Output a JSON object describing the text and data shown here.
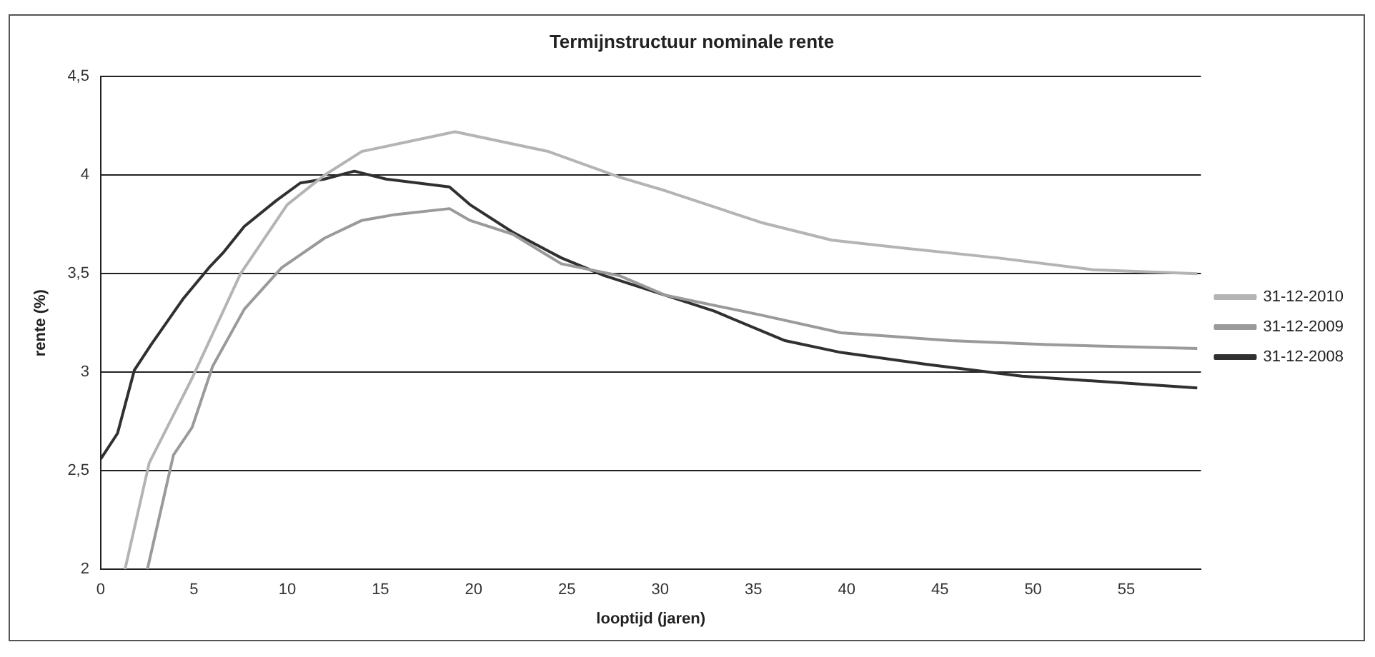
{
  "chart_data": {
    "type": "line",
    "title": "Termijnstructuur nominale rente",
    "xlabel": "looptijd (jaren)",
    "ylabel": "rente (%)",
    "xlim": [
      0,
      59
    ],
    "xticks": [
      0,
      5,
      10,
      15,
      20,
      25,
      30,
      35,
      40,
      45,
      50,
      55
    ],
    "ylim": [
      2,
      4.5
    ],
    "yticks": [
      2,
      {
        "value": 2.5,
        "label": "2,5"
      },
      3,
      {
        "value": 3.5,
        "label": "3,5"
      },
      4,
      {
        "value": 4.5,
        "label": "4,5"
      }
    ],
    "grid": "y",
    "legend": "right",
    "marker": "none",
    "line_style": "solid",
    "series": [
      {
        "name": "31-12-2010",
        "color": "#b4b4b4",
        "x": [
          1.3,
          2.6,
          4.9,
          7.5,
          10,
          12,
          14,
          19,
          24,
          27.8,
          30.3,
          35.4,
          39.2,
          43,
          48.1,
          53.2,
          58.8
        ],
        "values": [
          2,
          2.54,
          2.97,
          3.5,
          3.85,
          4,
          4.12,
          4.22,
          4.12,
          3.99,
          3.92,
          3.76,
          3.67,
          3.63,
          3.58,
          3.52,
          3.5
        ]
      },
      {
        "name": "31-12-2009",
        "color": "#9a9a9a",
        "x": [
          2.5,
          3.9,
          4.9,
          6,
          7.7,
          9.7,
          12,
          14,
          15.8,
          18.7,
          19.8,
          22.1,
          24.7,
          27.8,
          30.3,
          35.4,
          39.7,
          45.6,
          50.7,
          58.8
        ],
        "values": [
          2,
          2.58,
          2.72,
          3.03,
          3.32,
          3.53,
          3.68,
          3.77,
          3.8,
          3.83,
          3.77,
          3.7,
          3.55,
          3.49,
          3.39,
          3.29,
          3.2,
          3.16,
          3.14,
          3.12
        ]
      },
      {
        "name": "31-12-2008",
        "color": "#303030",
        "x": [
          0,
          0.9,
          1.8,
          2.7,
          4.4,
          5.8,
          6.6,
          7.7,
          9.4,
          10.7,
          12,
          13.6,
          15.3,
          18.7,
          19.8,
          22.1,
          24.7,
          27,
          30.3,
          32.9,
          36.7,
          39.7,
          44.3,
          49.4,
          58.8
        ],
        "values": [
          2.56,
          2.69,
          3.01,
          3.14,
          3.37,
          3.53,
          3.61,
          3.74,
          3.87,
          3.96,
          3.98,
          4.02,
          3.98,
          3.94,
          3.85,
          3.71,
          3.58,
          3.49,
          3.39,
          3.31,
          3.16,
          3.1,
          3.04,
          2.98,
          2.92
        ]
      }
    ]
  }
}
